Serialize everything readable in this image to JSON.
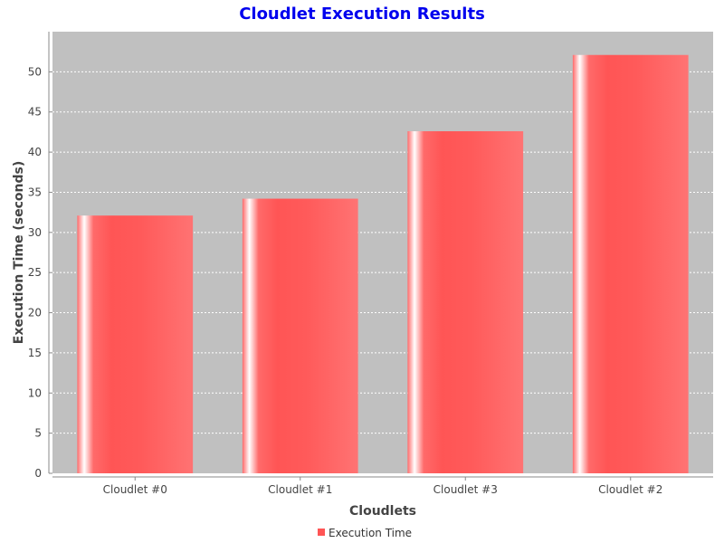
{
  "chart_data": {
    "type": "bar",
    "title": "Cloudlet Execution Results",
    "xlabel": "Cloudlets",
    "ylabel": "Execution Time (seconds)",
    "categories": [
      "Cloudlet #0",
      "Cloudlet #1",
      "Cloudlet #3",
      "Cloudlet #2"
    ],
    "series": [
      {
        "name": "Execution Time",
        "values": [
          32.1,
          34.2,
          42.6,
          52.1
        ]
      }
    ],
    "ylim": [
      0,
      55
    ],
    "yticks": [
      0,
      5,
      10,
      15,
      20,
      25,
      30,
      35,
      40,
      45,
      50
    ],
    "ytick_labels": [
      "0",
      "5",
      "10",
      "15",
      "20",
      "25",
      "30",
      "35",
      "40",
      "45",
      "50"
    ],
    "grid": true,
    "legend_position": "bottom",
    "colors": {
      "bar": "#ff5555",
      "plot_background": "#c0c0c0",
      "title": "#0000ee",
      "gridline": "#ffffff"
    }
  }
}
